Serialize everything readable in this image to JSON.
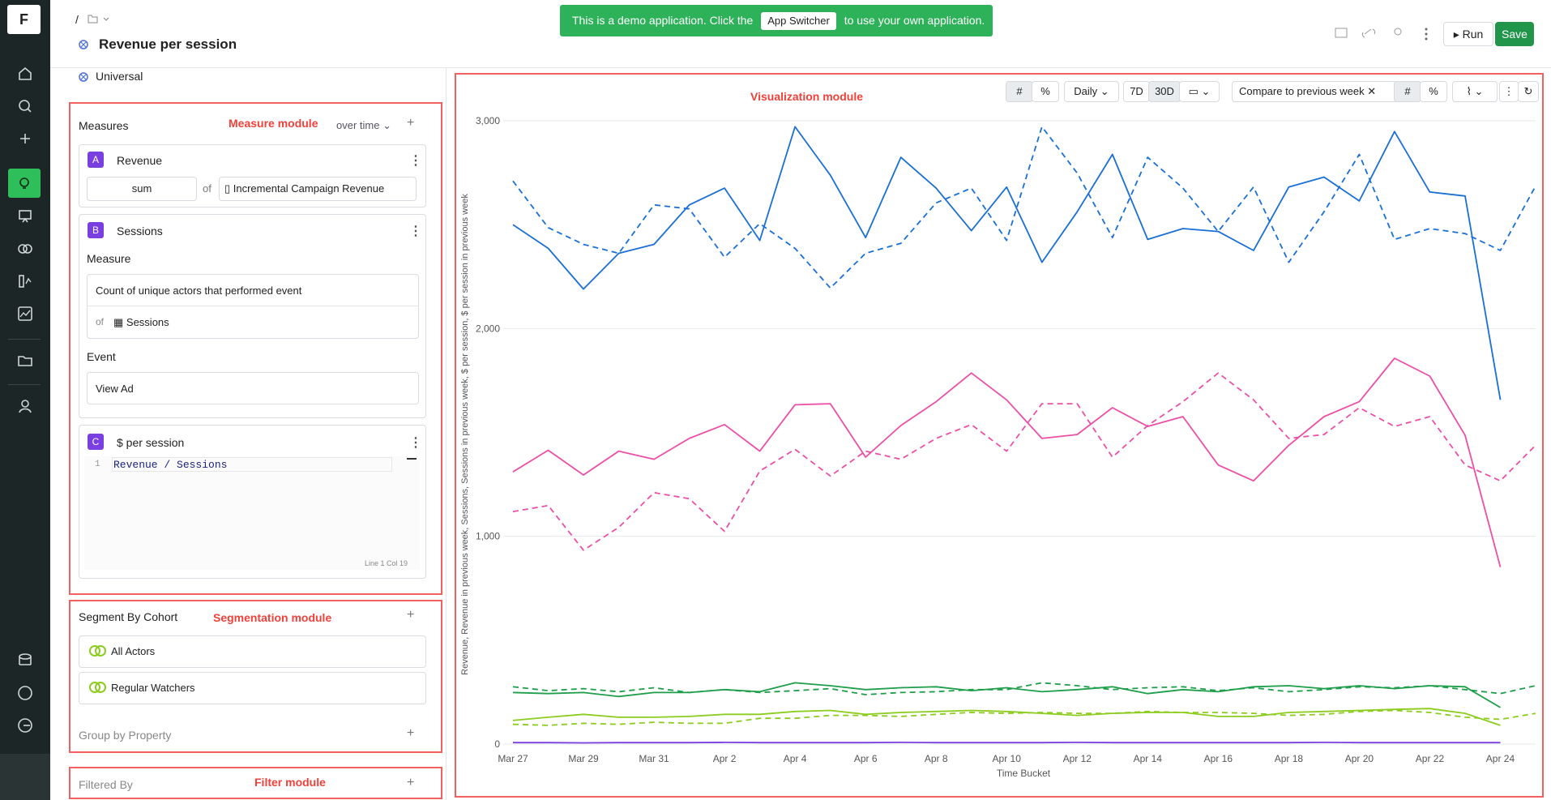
{
  "logo": "F",
  "header": {
    "breadcrumb": "/",
    "title": "Revenue per session",
    "banner": {
      "before": "This is a demo application. Click the",
      "button": "App Switcher",
      "after": "to use your own application."
    },
    "run": "Run",
    "save": "Save"
  },
  "left_panel": {
    "dataset": "Universal",
    "measure_module": {
      "annotation": "Measure module",
      "title": "Measures",
      "mode": "over time",
      "measures": [
        {
          "letter": "A",
          "name": "Revenue",
          "aggregation": "sum",
          "of": "of",
          "column": "Incremental Campaign Revenue"
        },
        {
          "letter": "B",
          "name": "Sessions",
          "measure_label": "Measure",
          "measure": "Count of unique actors that performed event",
          "of": "of",
          "source": "Sessions",
          "event_label": "Event",
          "event": "View Ad"
        },
        {
          "letter": "C",
          "name": "$ per session",
          "line_number": "1",
          "formula": "Revenue / Sessions",
          "cursor": "Line 1 Col 19"
        }
      ]
    },
    "segmentation_module": {
      "annotation": "Segmentation module",
      "title": "Segment By Cohort",
      "cohorts": [
        "All Actors",
        "Regular Watchers"
      ],
      "group_by": "Group by Property"
    },
    "filter_module": {
      "annotation": "Filter module",
      "title": "Filtered By"
    }
  },
  "toolbar": {
    "granularity": "Daily",
    "ranges": [
      "7D",
      "30D"
    ],
    "compare": "Compare to previous week"
  },
  "chart_data": {
    "type": "line",
    "annotation": "Visualization module",
    "y_label": "Revenue, Revenue in previous week, Sessions, Sessions in previous week, $ per session, $ per session in previous week",
    "x_label": "Time Bucket",
    "categories": [
      "Mar 27",
      null,
      "Mar 29",
      null,
      "Mar 31",
      null,
      "Apr 2",
      null,
      "Apr 4",
      null,
      "Apr 6",
      null,
      "Apr 8",
      null,
      "Apr 10",
      null,
      "Apr 12",
      null,
      "Apr 14",
      null,
      "Apr 16",
      null,
      "Apr 18",
      null,
      "Apr 20",
      null,
      "Apr 22",
      null,
      "Apr 24",
      null
    ],
    "ylim": [
      0,
      3000
    ],
    "yticks": [
      0,
      {
        "value": 1000,
        "label": "1,000"
      },
      {
        "value": 2000,
        "label": "2,000"
      },
      {
        "value": 3000,
        "label": "3,000"
      }
    ],
    "grid": true,
    "series": [
      {
        "color": "#1a6fd6",
        "dashed": false,
        "values": [
          2500,
          2386,
          2190,
          2362,
          2405,
          2595,
          2676,
          2424,
          2971,
          2738,
          2438,
          2824,
          2676,
          2471,
          2681,
          2319,
          2562,
          2838,
          2429,
          2481,
          2467,
          2376,
          2681,
          2729,
          2614,
          2948,
          2657,
          2638,
          1657,
          null
        ]
      },
      {
        "color": "#1a6fd6",
        "dashed": true,
        "values": [
          2710,
          2486,
          2405,
          2362,
          2595,
          2576,
          2343,
          2505,
          2386,
          2195,
          2362,
          2410,
          2605,
          2676,
          2424,
          2971,
          2748,
          2438,
          2824,
          2676,
          2467,
          2681,
          2319,
          2562,
          2838,
          2429,
          2481,
          2457,
          2376,
          2686
        ]
      },
      {
        "color": "#ec4fa6",
        "dashed": false,
        "values": [
          1310,
          1414,
          1295,
          1410,
          1371,
          1471,
          1538,
          1410,
          1633,
          1638,
          1381,
          1533,
          1648,
          1786,
          1657,
          1471,
          1490,
          1619,
          1529,
          1576,
          1343,
          1267,
          1438,
          1576,
          1648,
          1857,
          1771,
          1486,
          852,
          null
        ]
      },
      {
        "color": "#ec4fa6",
        "dashed": true,
        "values": [
          1119,
          1148,
          933,
          1043,
          1210,
          1181,
          1024,
          1314,
          1419,
          1290,
          1410,
          1371,
          1471,
          1538,
          1410,
          1638,
          1638,
          1381,
          1533,
          1648,
          1786,
          1657,
          1471,
          1490,
          1619,
          1529,
          1576,
          1343,
          1267,
          1438
        ]
      },
      {
        "color": "#1e9e4a",
        "dashed": false,
        "values": [
          248,
          243,
          248,
          229,
          248,
          248,
          262,
          252,
          295,
          281,
          262,
          271,
          276,
          257,
          271,
          252,
          262,
          276,
          243,
          262,
          252,
          276,
          281,
          267,
          281,
          267,
          281,
          276,
          176,
          null
        ]
      },
      {
        "color": "#1e9e4a",
        "dashed": true,
        "values": [
          276,
          257,
          267,
          252,
          271,
          248,
          262,
          248,
          257,
          267,
          238,
          248,
          252,
          262,
          262,
          295,
          281,
          262,
          271,
          276,
          257,
          271,
          252,
          262,
          276,
          271,
          281,
          262,
          243,
          281
        ]
      },
      {
        "color": "#8ccc1e",
        "dashed": false,
        "values": [
          114,
          129,
          143,
          129,
          129,
          133,
          143,
          143,
          157,
          162,
          143,
          152,
          157,
          162,
          157,
          148,
          138,
          148,
          152,
          152,
          133,
          133,
          152,
          157,
          162,
          167,
          171,
          148,
          90,
          null
        ]
      },
      {
        "color": "#8ccc1e",
        "dashed": true,
        "values": [
          95,
          90,
          100,
          95,
          105,
          100,
          100,
          124,
          124,
          138,
          138,
          133,
          143,
          152,
          148,
          152,
          148,
          148,
          157,
          152,
          152,
          148,
          138,
          143,
          157,
          162,
          152,
          129,
          119,
          148
        ]
      },
      {
        "color": "#7a3fe0",
        "dashed": false,
        "values": [
          7,
          7,
          6,
          7,
          7,
          7,
          8,
          7,
          7,
          7,
          7,
          8,
          7,
          7,
          7,
          7,
          8,
          7,
          7,
          7,
          7,
          7,
          7,
          8,
          7,
          7,
          7,
          7,
          7,
          null
        ]
      }
    ]
  }
}
